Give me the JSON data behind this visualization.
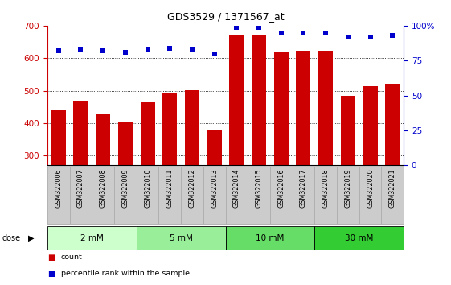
{
  "title": "GDS3529 / 1371567_at",
  "samples": [
    "GSM322006",
    "GSM322007",
    "GSM322008",
    "GSM322009",
    "GSM322010",
    "GSM322011",
    "GSM322012",
    "GSM322013",
    "GSM322014",
    "GSM322015",
    "GSM322016",
    "GSM322017",
    "GSM322018",
    "GSM322019",
    "GSM322020",
    "GSM322021"
  ],
  "counts": [
    440,
    468,
    430,
    403,
    465,
    495,
    502,
    378,
    670,
    672,
    620,
    622,
    623,
    485,
    513,
    522
  ],
  "percentiles": [
    82,
    83,
    82,
    81,
    83,
    84,
    83,
    80,
    99,
    99,
    95,
    95,
    95,
    92,
    92,
    93
  ],
  "bar_color": "#cc0000",
  "dot_color": "#0000cc",
  "ylim_left": [
    270,
    700
  ],
  "ylim_right": [
    0,
    100
  ],
  "yticks_left": [
    300,
    400,
    500,
    600,
    700
  ],
  "yticks_right": [
    0,
    25,
    50,
    75,
    100
  ],
  "dose_groups": [
    {
      "label": "2 mM",
      "start": 0,
      "end": 4,
      "color": "#ccffcc"
    },
    {
      "label": "5 mM",
      "start": 4,
      "end": 8,
      "color": "#99ee99"
    },
    {
      "label": "10 mM",
      "start": 8,
      "end": 12,
      "color": "#66dd66"
    },
    {
      "label": "30 mM",
      "start": 12,
      "end": 16,
      "color": "#33cc33"
    }
  ],
  "background_color": "#ffffff",
  "bar_color_left": "#cc0000",
  "dot_color_right": "#0000cc",
  "sample_bg_color": "#cccccc",
  "sample_border_color": "#aaaaaa",
  "grid_yticks": [
    300,
    400,
    500,
    600
  ],
  "bar_bottom": 270
}
